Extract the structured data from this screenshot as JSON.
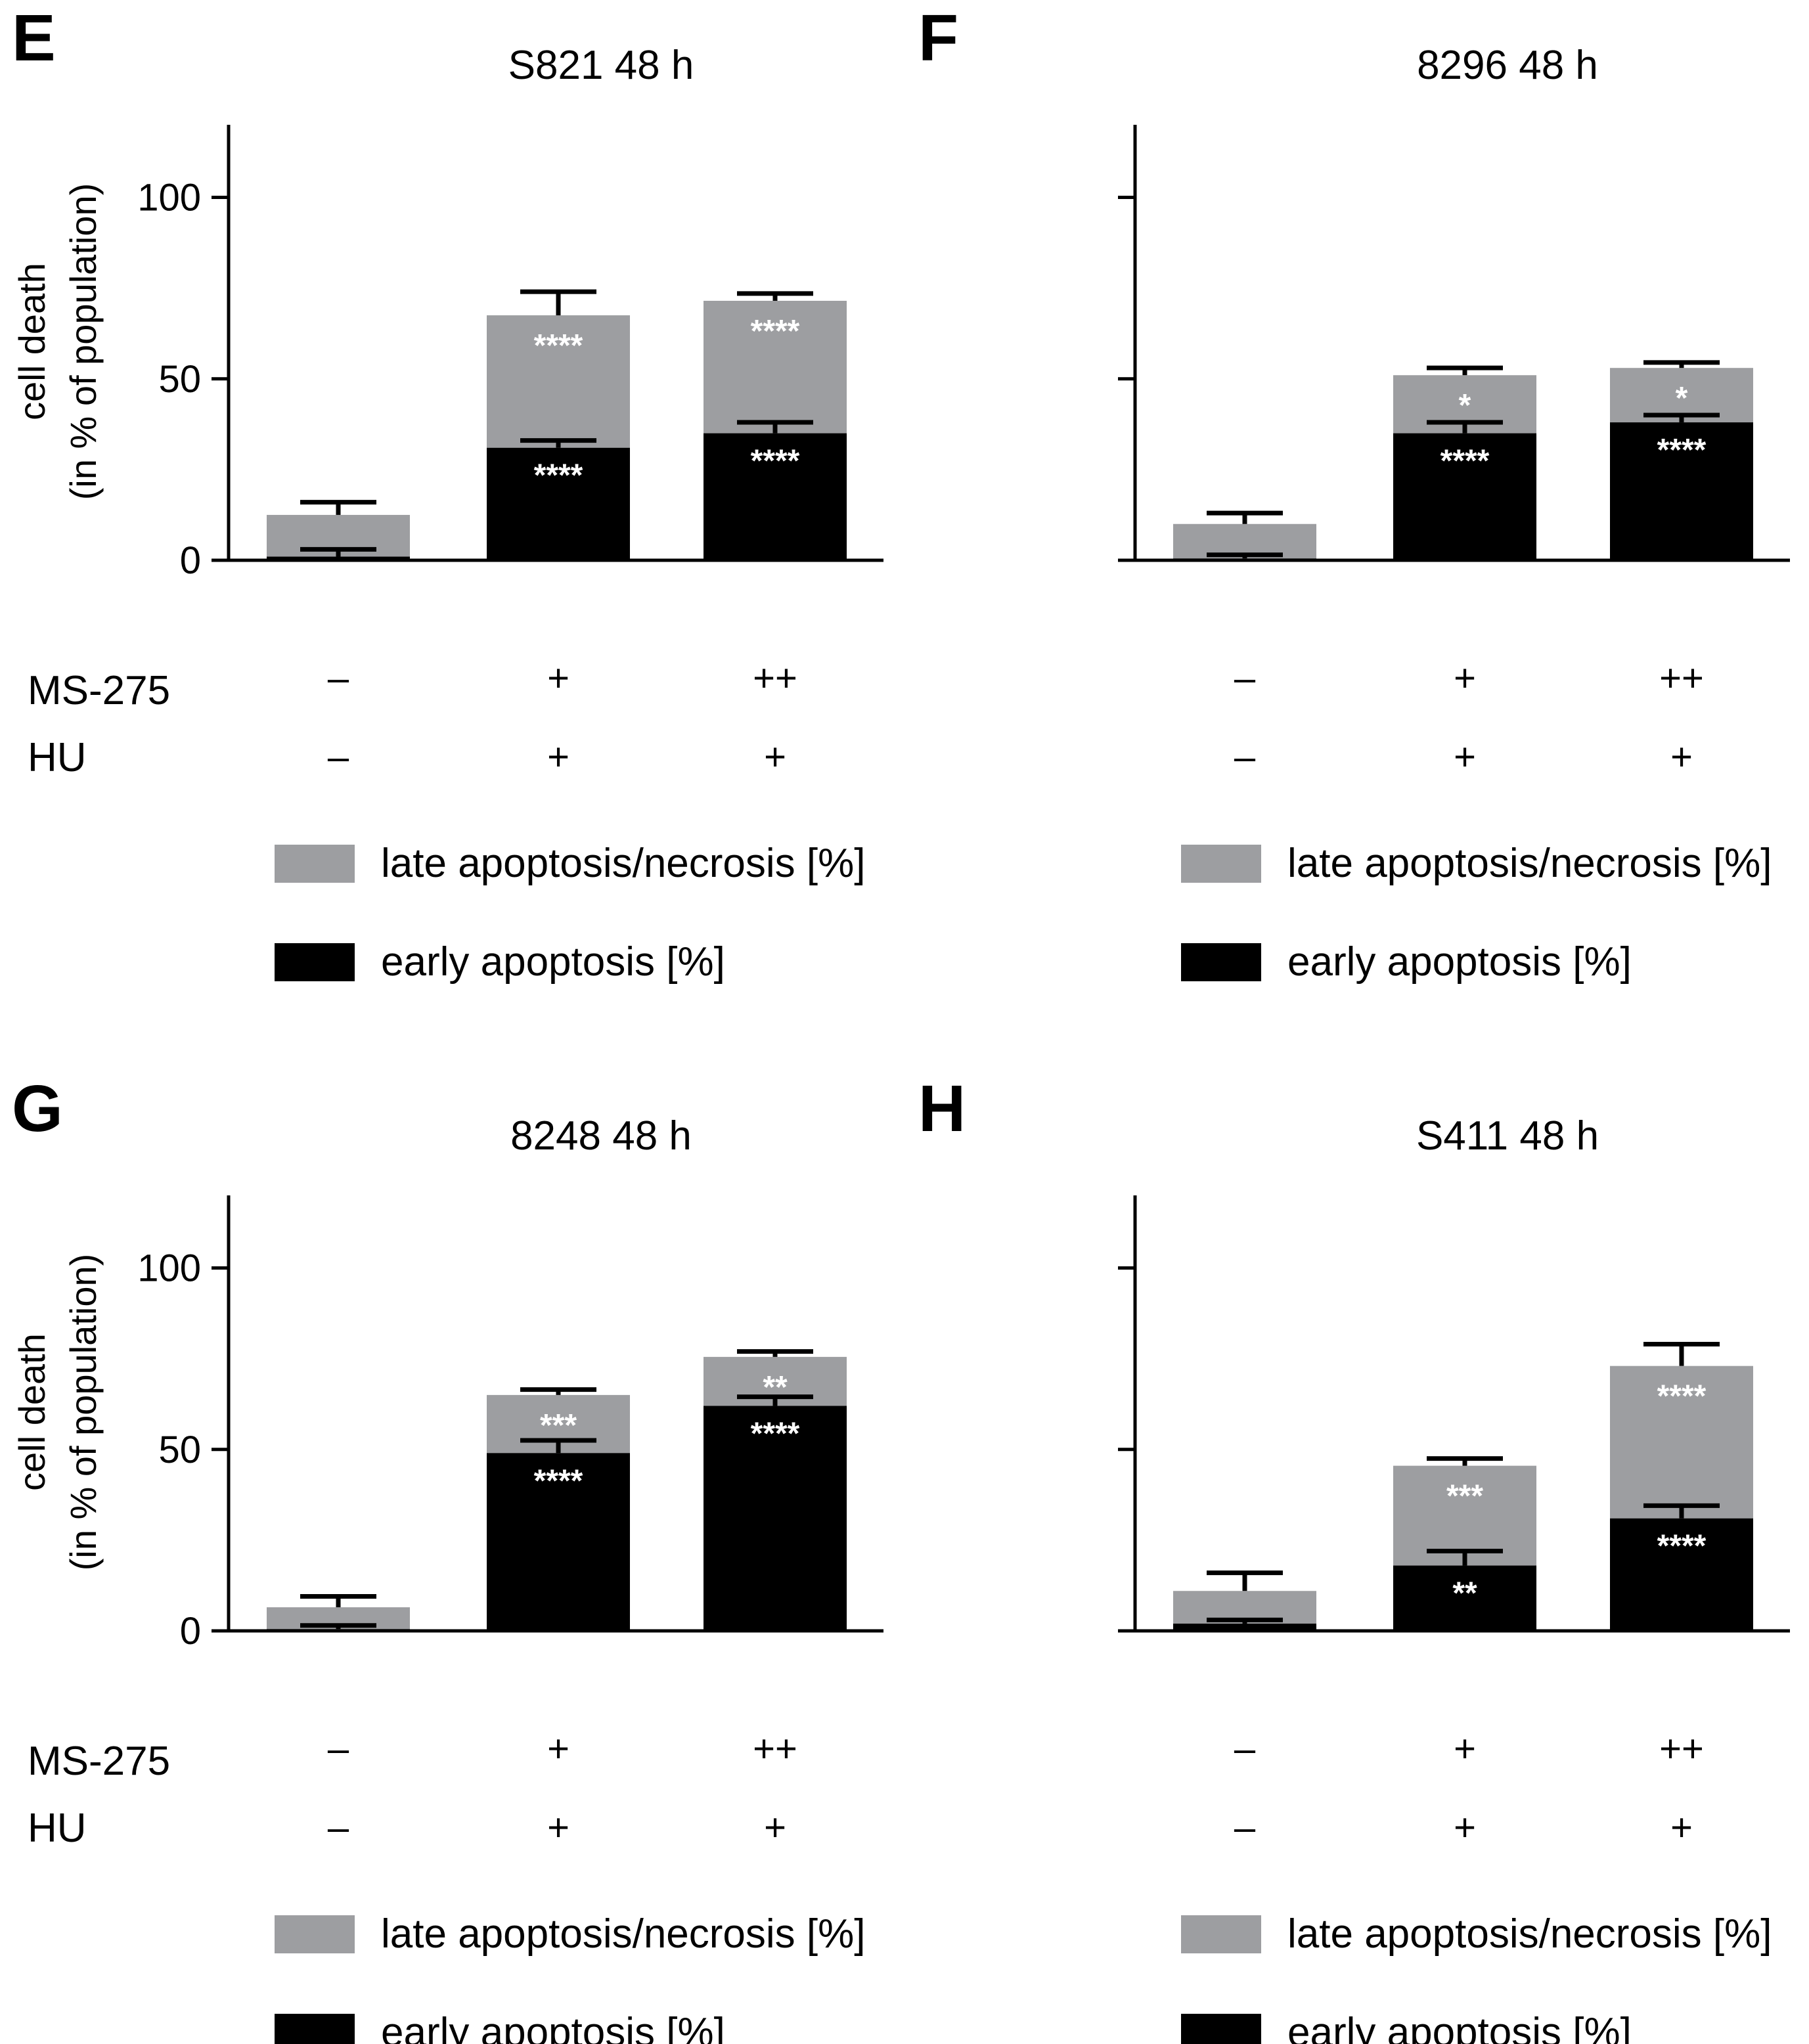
{
  "figure": {
    "y_axis_label_line1": "cell death",
    "y_axis_label_line2": "(in % of population)",
    "row_labels": [
      "MS-275",
      "HU"
    ],
    "legend": [
      {
        "label": "late apoptosis/necrosis [%]",
        "color": "#9d9ea1"
      },
      {
        "label": "early apoptosis [%]",
        "color": "#000000"
      }
    ]
  },
  "chart_data": [
    {
      "panel_letter": "E",
      "type": "bar",
      "stacked": true,
      "title": "S821 48 h",
      "ylim": [
        0,
        120
      ],
      "yticks": [
        0,
        50,
        100
      ],
      "show_tick_labels": true,
      "categories": [
        "–/–",
        "+/+",
        "++/+"
      ],
      "conditions": {
        "MS-275": [
          "–",
          "+",
          "++"
        ],
        "HU": [
          "–",
          "+",
          "+"
        ]
      },
      "series": [
        {
          "name": "early apoptosis [%]",
          "color": "#000000",
          "values": [
            1,
            31,
            35
          ],
          "errors": [
            2,
            2,
            3
          ],
          "significance": [
            "",
            "****",
            "****"
          ]
        },
        {
          "name": "late apoptosis/necrosis [%]",
          "color": "#9d9ea1",
          "values": [
            11.5,
            36.5,
            36.5
          ],
          "errors": [
            3.5,
            6.5,
            2
          ],
          "significance": [
            "",
            "****",
            "****"
          ]
        }
      ]
    },
    {
      "panel_letter": "F",
      "type": "bar",
      "stacked": true,
      "title": "8296 48 h",
      "ylim": [
        0,
        120
      ],
      "yticks": [
        0,
        50,
        100
      ],
      "show_tick_labels": false,
      "categories": [
        "–/–",
        "+/+",
        "++/+"
      ],
      "conditions": {
        "MS-275": [
          "–",
          "+",
          "++"
        ],
        "HU": [
          "–",
          "+",
          "+"
        ]
      },
      "series": [
        {
          "name": "early apoptosis [%]",
          "color": "#000000",
          "values": [
            0.5,
            35,
            38
          ],
          "errors": [
            1,
            3,
            2
          ],
          "significance": [
            "",
            "****",
            "****"
          ]
        },
        {
          "name": "late apoptosis/necrosis [%]",
          "color": "#9d9ea1",
          "values": [
            9.5,
            16,
            15
          ],
          "errors": [
            3,
            2,
            1.5
          ],
          "significance": [
            "",
            "*",
            "*"
          ]
        }
      ]
    },
    {
      "panel_letter": "G",
      "type": "bar",
      "stacked": true,
      "title": "8248 48 h",
      "ylim": [
        0,
        120
      ],
      "yticks": [
        0,
        50,
        100
      ],
      "show_tick_labels": true,
      "categories": [
        "–/–",
        "+/+",
        "++/+"
      ],
      "conditions": {
        "MS-275": [
          "–",
          "+",
          "++"
        ],
        "HU": [
          "–",
          "+",
          "+"
        ]
      },
      "series": [
        {
          "name": "early apoptosis [%]",
          "color": "#000000",
          "values": [
            0.5,
            49,
            62
          ],
          "errors": [
            1,
            3.5,
            2.5
          ],
          "significance": [
            "",
            "****",
            "****"
          ]
        },
        {
          "name": "late apoptosis/necrosis [%]",
          "color": "#9d9ea1",
          "values": [
            6,
            16,
            13.5
          ],
          "errors": [
            3,
            1.5,
            1.5
          ],
          "significance": [
            "",
            "***",
            "**"
          ]
        }
      ]
    },
    {
      "panel_letter": "H",
      "type": "bar",
      "stacked": true,
      "title": "S411 48 h",
      "ylim": [
        0,
        120
      ],
      "yticks": [
        0,
        50,
        100
      ],
      "show_tick_labels": false,
      "categories": [
        "–/–",
        "+/+",
        "++/+"
      ],
      "conditions": {
        "MS-275": [
          "–",
          "+",
          "++"
        ],
        "HU": [
          "–",
          "+",
          "+"
        ]
      },
      "series": [
        {
          "name": "early apoptosis [%]",
          "color": "#000000",
          "values": [
            2,
            18,
            31
          ],
          "errors": [
            1,
            4,
            3.5
          ],
          "significance": [
            "",
            "**",
            "****"
          ]
        },
        {
          "name": "late apoptosis/necrosis [%]",
          "color": "#9d9ea1",
          "values": [
            9,
            27.5,
            42
          ],
          "errors": [
            5,
            2,
            6
          ],
          "significance": [
            "",
            "***",
            "****"
          ]
        }
      ]
    }
  ]
}
